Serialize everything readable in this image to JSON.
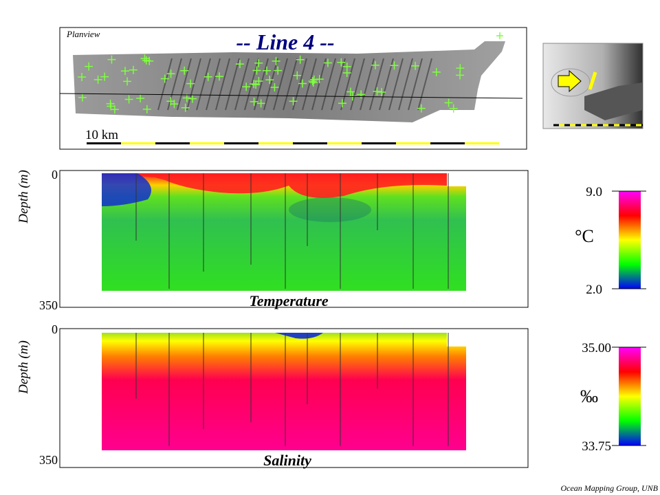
{
  "header": {
    "title": "-- Line 4 --"
  },
  "planview": {
    "label": "Planview",
    "scale_label": "10 km"
  },
  "temperature": {
    "y_label": "Depth (m)",
    "top_tick": "0",
    "bottom_tick": "350",
    "caption": "Temperature",
    "colorbar": {
      "max": "9.0",
      "unit": "°C",
      "min": "2.0"
    }
  },
  "salinity": {
    "y_label": "Depth (m)",
    "top_tick": "0",
    "bottom_tick": "350",
    "caption": "Salinity",
    "colorbar": {
      "max": "35.00",
      "unit": "‰",
      "min": "33.75"
    }
  },
  "footer": {
    "credit": "Ocean Mapping Group, UNB"
  }
}
